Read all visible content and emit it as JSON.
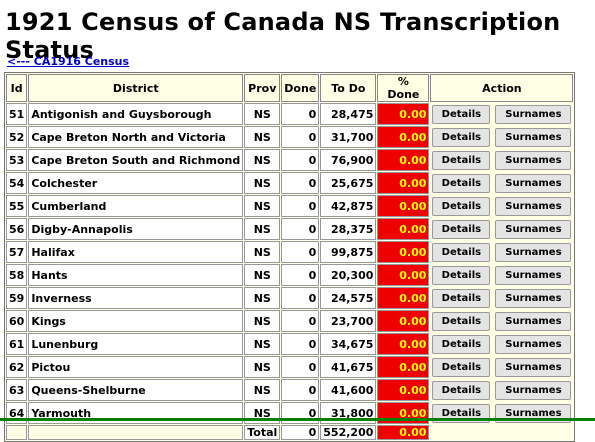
{
  "title": "1921 Census of Canada NS Transcription Status",
  "back_link": "<--- CA1916 Census",
  "headers": {
    "id": "Id",
    "district": "District",
    "prov": "Prov",
    "done": "Done",
    "todo": "To Do",
    "pct": "% Done",
    "action": "Action"
  },
  "details_label": "Details",
  "surnames_label": "Surnames",
  "rows": [
    {
      "id": "51",
      "district": "Antigonish and Guysborough",
      "prov": "NS",
      "done": "0",
      "todo": "28,475",
      "pct": "0.00"
    },
    {
      "id": "52",
      "district": "Cape Breton North and Victoria",
      "prov": "NS",
      "done": "0",
      "todo": "31,700",
      "pct": "0.00"
    },
    {
      "id": "53",
      "district": "Cape Breton South and Richmond",
      "prov": "NS",
      "done": "0",
      "todo": "76,900",
      "pct": "0.00"
    },
    {
      "id": "54",
      "district": "Colchester",
      "prov": "NS",
      "done": "0",
      "todo": "25,675",
      "pct": "0.00"
    },
    {
      "id": "55",
      "district": "Cumberland",
      "prov": "NS",
      "done": "0",
      "todo": "42,875",
      "pct": "0.00"
    },
    {
      "id": "56",
      "district": "Digby-Annapolis",
      "prov": "NS",
      "done": "0",
      "todo": "28,375",
      "pct": "0.00"
    },
    {
      "id": "57",
      "district": "Halifax",
      "prov": "NS",
      "done": "0",
      "todo": "99,875",
      "pct": "0.00"
    },
    {
      "id": "58",
      "district": "Hants",
      "prov": "NS",
      "done": "0",
      "todo": "20,300",
      "pct": "0.00"
    },
    {
      "id": "59",
      "district": "Inverness",
      "prov": "NS",
      "done": "0",
      "todo": "24,575",
      "pct": "0.00"
    },
    {
      "id": "60",
      "district": "Kings",
      "prov": "NS",
      "done": "0",
      "todo": "23,700",
      "pct": "0.00"
    },
    {
      "id": "61",
      "district": "Lunenburg",
      "prov": "NS",
      "done": "0",
      "todo": "34,675",
      "pct": "0.00"
    },
    {
      "id": "62",
      "district": "Pictou",
      "prov": "NS",
      "done": "0",
      "todo": "41,675",
      "pct": "0.00"
    },
    {
      "id": "63",
      "district": "Queens-Shelburne",
      "prov": "NS",
      "done": "0",
      "todo": "41,600",
      "pct": "0.00"
    },
    {
      "id": "64",
      "district": "Yarmouth",
      "prov": "NS",
      "done": "0",
      "todo": "31,800",
      "pct": "0.00"
    }
  ],
  "total": {
    "label": "Total",
    "done": "0",
    "todo": "552,200",
    "pct": "0.00"
  },
  "colors": {
    "pct_bg": "#ee0000",
    "pct_text": "#ffff00",
    "table_bg": "#ffffe6",
    "link": "#0000cc"
  }
}
